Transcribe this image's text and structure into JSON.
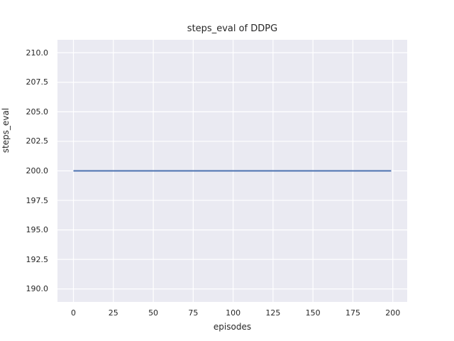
{
  "chart_data": {
    "type": "line",
    "title": "steps_eval of DDPG",
    "xlabel": "episodes",
    "ylabel": "steps_eval",
    "xlim": [
      -10,
      209
    ],
    "ylim": [
      188.9,
      211.1
    ],
    "xticks": [
      0,
      25,
      50,
      75,
      100,
      125,
      150,
      175,
      200
    ],
    "xtick_labels": [
      "0",
      "25",
      "50",
      "75",
      "100",
      "125",
      "150",
      "175",
      "200"
    ],
    "yticks": [
      190.0,
      192.5,
      195.0,
      197.5,
      200.0,
      202.5,
      205.0,
      207.5,
      210.0
    ],
    "ytick_labels": [
      "190.0",
      "192.5",
      "195.0",
      "197.5",
      "200.0",
      "202.5",
      "205.0",
      "207.5",
      "210.0"
    ],
    "grid": true,
    "legend_position": "none",
    "series": [
      {
        "name": "steps_eval",
        "color": "#4c72b0",
        "line_width": 2,
        "x": [
          0,
          199
        ],
        "y": [
          200.0,
          200.0
        ]
      }
    ],
    "colors": {
      "figure_bg": "#ffffff",
      "plot_bg": "#eaeaf2",
      "grid": "#ffffff",
      "text": "#262626"
    }
  }
}
